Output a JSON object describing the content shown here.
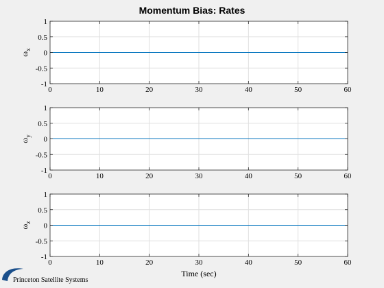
{
  "chart_data": {
    "title": "Momentum Bias: Rates",
    "type": "line",
    "xlabel": "Time (sec)",
    "xlim": [
      0,
      60
    ],
    "xticks": [
      0,
      10,
      20,
      30,
      40,
      50,
      60
    ],
    "grid": true,
    "series_color": "#0072bd",
    "subplots": [
      {
        "type": "line",
        "ylabel": "ω",
        "ylabel_subscript": "x",
        "ylim": [
          -1,
          1
        ],
        "yticks": [
          -1,
          -0.5,
          0,
          0.5,
          1
        ],
        "ytick_labels": [
          "-1",
          "-0.5",
          "0",
          "0.5",
          "1"
        ],
        "x": [
          0,
          60
        ],
        "values": [
          0,
          0
        ]
      },
      {
        "type": "line",
        "ylabel": "ω",
        "ylabel_subscript": "y",
        "ylim": [
          -1,
          1
        ],
        "yticks": [
          -1,
          -0.5,
          0,
          0.5,
          1
        ],
        "ytick_labels": [
          "-1",
          "-0.5",
          "0",
          "0.5",
          "1"
        ],
        "x": [
          0,
          60
        ],
        "values": [
          0,
          0
        ]
      },
      {
        "type": "line",
        "ylabel": "ω",
        "ylabel_subscript": "z",
        "ylim": [
          -1,
          1
        ],
        "yticks": [
          -1,
          -0.5,
          0,
          0.5,
          1
        ],
        "ytick_labels": [
          "-1",
          "-0.5",
          "0",
          "0.5",
          "1"
        ],
        "x": [
          0,
          60
        ],
        "values": [
          0,
          0
        ]
      }
    ]
  },
  "logo": {
    "text": "Princeton Satellite Systems",
    "color": "#1a4f8b"
  }
}
